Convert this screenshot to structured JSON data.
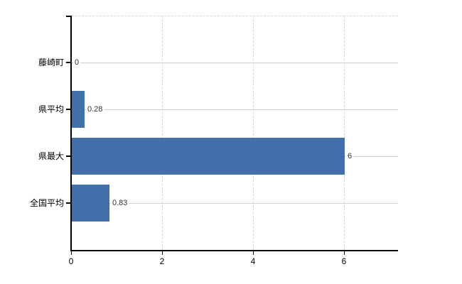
{
  "chart_data": {
    "type": "bar",
    "orientation": "horizontal",
    "title": "",
    "xlabel": "",
    "ylabel": "",
    "categories": [
      "藤崎町",
      "県平均",
      "県最大",
      "全国平均"
    ],
    "values": [
      0,
      0.28,
      6,
      0.83
    ],
    "value_labels": [
      "0",
      "0.28",
      "6",
      "0.83"
    ],
    "xticks": [
      0,
      2,
      4,
      6
    ],
    "xtick_labels": [
      "0",
      "2",
      "4",
      "6"
    ],
    "xlim": [
      0,
      7.1875
    ],
    "grid": true,
    "legend": false,
    "colors": {
      "bar": "#4170ab",
      "h_gridline": "#ccd4cb",
      "v_gridline": "#d6d6d6",
      "axis": "#000000",
      "value_text": "#333333",
      "label_text": "#000000",
      "background": "#ffffff"
    }
  }
}
